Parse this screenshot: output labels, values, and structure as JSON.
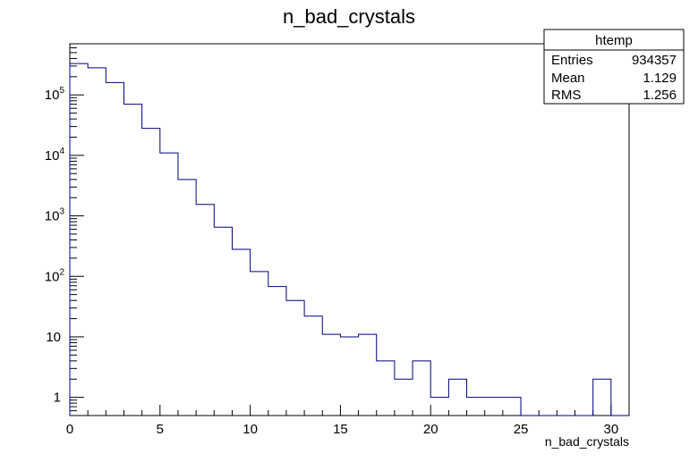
{
  "chart_data": {
    "type": "bar",
    "title": "n_bad_crystals",
    "xlabel": "n_bad_crystals",
    "ylabel": "",
    "xlim": [
      0,
      31
    ],
    "ylim": [
      0.5,
      700000
    ],
    "y_scale": "log",
    "bin_edges": [
      0,
      1,
      2,
      3,
      4,
      5,
      6,
      7,
      8,
      9,
      10,
      11,
      12,
      13,
      14,
      15,
      16,
      17,
      18,
      19,
      20,
      21,
      22,
      23,
      24,
      25,
      26,
      27,
      28,
      29,
      30,
      31
    ],
    "values": [
      330000,
      280000,
      160000,
      70000,
      28000,
      11000,
      4000,
      1550,
      650,
      280,
      120,
      68,
      40,
      22,
      11,
      10,
      11,
      4,
      2,
      4,
      1,
      2,
      1,
      1,
      1,
      0,
      0,
      0,
      0,
      2,
      0
    ],
    "x_ticks": [
      0,
      5,
      10,
      15,
      20,
      25,
      30
    ],
    "x_tick_labels": [
      "0",
      "5",
      "10",
      "15",
      "20",
      "25",
      "30"
    ],
    "y_ticks": [
      1,
      10,
      100,
      1000,
      10000,
      100000
    ],
    "y_tick_labels": [
      {
        "base": "1",
        "exp": ""
      },
      {
        "base": "10",
        "exp": ""
      },
      {
        "base": "10",
        "exp": "2"
      },
      {
        "base": "10",
        "exp": "3"
      },
      {
        "base": "10",
        "exp": "4"
      },
      {
        "base": "10",
        "exp": "5"
      }
    ],
    "line_color": "#000080",
    "grid": false
  },
  "stats_box": {
    "name": "htemp",
    "rows": [
      {
        "label": "Entries",
        "value": "934357"
      },
      {
        "label": "Mean",
        "value": "1.129"
      },
      {
        "label": "RMS",
        "value": "1.256"
      }
    ]
  }
}
